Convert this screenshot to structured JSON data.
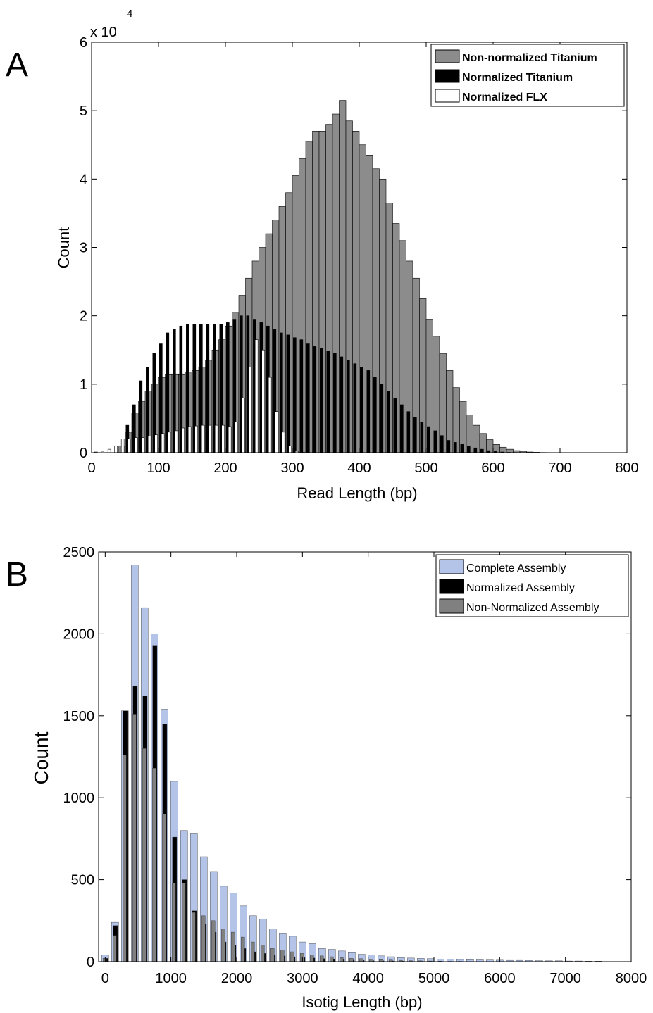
{
  "chart_data": [
    {
      "panel_label": "A",
      "type": "bar",
      "xlabel": "Read Length (bp)",
      "ylabel": "Count",
      "exponent_label": "x 10",
      "exponent_power": "4",
      "xlim": [
        0,
        800
      ],
      "ylim": [
        0,
        60000
      ],
      "xticks": [
        0,
        100,
        200,
        300,
        400,
        500,
        600,
        700,
        800
      ],
      "yticks": [
        0,
        1,
        2,
        3,
        4,
        5,
        6
      ],
      "ytick_scale": 10000,
      "bin_width": 10,
      "legend_position": "top-right",
      "x": [
        5,
        15,
        25,
        35,
        45,
        55,
        65,
        75,
        85,
        95,
        105,
        115,
        125,
        135,
        145,
        155,
        165,
        175,
        185,
        195,
        205,
        215,
        225,
        235,
        245,
        255,
        265,
        275,
        285,
        295,
        305,
        315,
        325,
        335,
        345,
        355,
        365,
        375,
        385,
        395,
        405,
        415,
        425,
        435,
        445,
        455,
        465,
        475,
        485,
        495,
        505,
        515,
        525,
        535,
        545,
        555,
        565,
        575,
        585,
        595,
        605,
        615,
        625,
        635,
        645,
        655,
        665,
        675,
        685,
        695,
        705,
        715,
        725,
        735,
        745,
        755,
        765,
        775,
        785
      ],
      "series": [
        {
          "name": "Non-normalized Titanium",
          "color": "#8c8c8c",
          "values": [
            0,
            0,
            0,
            0,
            1000,
            3000,
            5800,
            7500,
            9000,
            10000,
            11000,
            11500,
            11500,
            11500,
            11800,
            12000,
            12500,
            13500,
            15000,
            16500,
            18500,
            20500,
            23000,
            25500,
            28000,
            30000,
            32000,
            34000,
            36000,
            38000,
            40500,
            43000,
            45500,
            47000,
            47000,
            48000,
            49500,
            51500,
            48500,
            47000,
            45000,
            43500,
            41500,
            40000,
            36500,
            33500,
            31000,
            28000,
            25500,
            22500,
            19500,
            17000,
            14500,
            12000,
            9500,
            7500,
            5500,
            4000,
            2800,
            1900,
            1200,
            800,
            500,
            300,
            200,
            100,
            60,
            30,
            20,
            10,
            5,
            5,
            0,
            0,
            0,
            0,
            0,
            0,
            0
          ]
        },
        {
          "name": "Normalized Titanium",
          "color": "#000000",
          "values": [
            0,
            0,
            0,
            0,
            0,
            4000,
            7000,
            10500,
            12500,
            14500,
            16000,
            17500,
            18000,
            18500,
            18800,
            18800,
            18800,
            18800,
            18800,
            18800,
            19000,
            19500,
            20000,
            20000,
            19500,
            19000,
            18500,
            18000,
            17500,
            17200,
            16800,
            16500,
            16000,
            15500,
            15200,
            14800,
            14500,
            14000,
            13500,
            13000,
            12500,
            12000,
            11000,
            10000,
            9000,
            8000,
            7000,
            6000,
            5200,
            4500,
            3800,
            3200,
            2500,
            1800,
            1500,
            1200,
            900,
            700,
            500,
            300,
            200,
            100,
            50,
            30,
            20,
            10,
            5,
            0,
            0,
            0,
            0,
            0,
            0,
            0,
            0,
            0,
            0,
            0,
            0
          ]
        },
        {
          "name": "Normalized FLX",
          "color": "#ffffff",
          "values": [
            100,
            200,
            500,
            1000,
            2000,
            2000,
            2200,
            2200,
            2400,
            2600,
            2800,
            3000,
            3200,
            3600,
            3800,
            3900,
            4000,
            4000,
            4000,
            4000,
            3800,
            4500,
            8000,
            12500,
            16500,
            15000,
            11000,
            6000,
            3000,
            1000,
            200,
            50,
            0,
            0,
            0,
            0,
            0,
            0,
            0,
            0,
            0,
            0,
            0,
            0,
            0,
            0,
            0,
            0,
            0,
            0,
            0,
            0,
            0,
            0,
            0,
            0,
            0,
            0,
            0,
            0,
            0,
            0,
            0,
            0,
            0,
            0,
            0,
            0,
            0,
            0,
            0,
            0,
            0,
            0,
            0,
            0,
            0,
            0,
            0
          ]
        }
      ]
    },
    {
      "panel_label": "B",
      "type": "bar",
      "xlabel": "Isotig Length (bp)",
      "ylabel": "Count",
      "xlim": [
        -100,
        8000
      ],
      "ylim": [
        0,
        2500
      ],
      "xticks": [
        0,
        1000,
        2000,
        3000,
        4000,
        5000,
        6000,
        7000,
        8000
      ],
      "yticks": [
        0,
        500,
        1000,
        1500,
        2000,
        2500
      ],
      "bin_width": 150,
      "legend_position": "top-right",
      "x": [
        0,
        150,
        300,
        450,
        600,
        750,
        900,
        1050,
        1200,
        1350,
        1500,
        1650,
        1800,
        1950,
        2100,
        2250,
        2400,
        2550,
        2700,
        2850,
        3000,
        3150,
        3300,
        3450,
        3600,
        3750,
        3900,
        4050,
        4200,
        4350,
        4500,
        4650,
        4800,
        4950,
        5100,
        5250,
        5400,
        5550,
        5700,
        5850,
        6000,
        6150,
        6300,
        6450,
        6600,
        6750,
        6900,
        7050,
        7200,
        7350,
        7500
      ],
      "series": [
        {
          "name": "Complete Assembly",
          "color": "#b3c4e8",
          "values": [
            40,
            240,
            1530,
            2420,
            2160,
            2000,
            1540,
            1100,
            800,
            780,
            640,
            550,
            460,
            420,
            340,
            280,
            260,
            200,
            170,
            155,
            120,
            110,
            80,
            75,
            65,
            55,
            45,
            40,
            35,
            30,
            25,
            22,
            20,
            18,
            16,
            14,
            13,
            12,
            11,
            10,
            9,
            8,
            8,
            7,
            6,
            5,
            5,
            4,
            4,
            3,
            3
          ]
        },
        {
          "name": "Normalized Assembly",
          "color": "#000000",
          "values": [
            20,
            220,
            1530,
            1680,
            1620,
            1930,
            1450,
            760,
            500,
            310,
            230,
            180,
            120,
            100,
            80,
            60,
            50,
            40,
            35,
            30,
            25,
            22,
            18,
            15,
            12,
            10,
            8,
            6,
            5,
            4,
            3,
            2,
            2,
            1,
            1,
            1,
            0,
            0,
            0,
            0,
            0,
            0,
            0,
            0,
            0,
            0,
            0,
            0,
            0,
            0,
            0
          ]
        },
        {
          "name": "Non-Normalized Assembly",
          "color": "#808080",
          "values": [
            20,
            160,
            1260,
            1510,
            1300,
            1180,
            900,
            480,
            480,
            300,
            280,
            250,
            200,
            180,
            150,
            120,
            100,
            80,
            70,
            60,
            50,
            40,
            35,
            30,
            25,
            20,
            18,
            15,
            12,
            10,
            8,
            6,
            5,
            4,
            3,
            2,
            2,
            1,
            1,
            1,
            0,
            0,
            0,
            0,
            0,
            0,
            0,
            0,
            0,
            0,
            0
          ]
        }
      ]
    }
  ]
}
